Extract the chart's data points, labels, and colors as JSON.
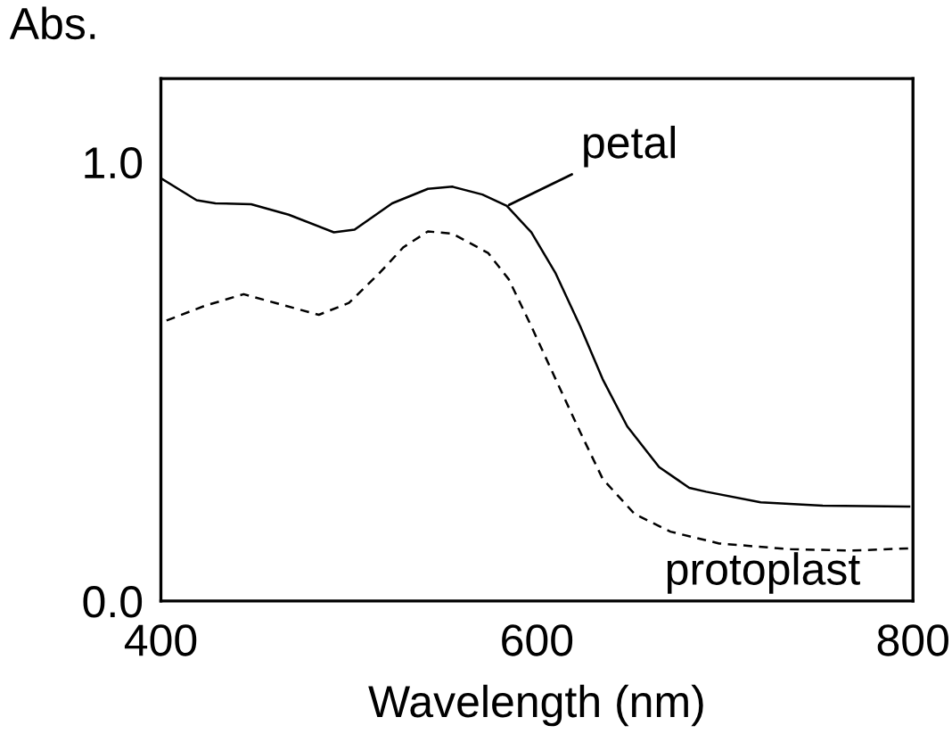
{
  "chart_data": {
    "type": "line",
    "xlabel": "Wavelength (nm)",
    "ylabel": "Abs.",
    "xlim": [
      400,
      800
    ],
    "ylim": [
      0,
      1.19
    ],
    "xticks": [
      400,
      600,
      800
    ],
    "yticks": [
      {
        "value": 0,
        "label": "0.0"
      },
      {
        "value": 1,
        "label": "1.0"
      }
    ],
    "grid": false,
    "legend": false,
    "series": [
      {
        "name": "petal",
        "color": "#000000",
        "line_style": "solid",
        "x": [
          400,
          419,
          429,
          448,
          468,
          492,
          503,
          523,
          542,
          555,
          571,
          584,
          597,
          610,
          623,
          635,
          648,
          665,
          681,
          690,
          719,
          752,
          798
        ],
        "values": [
          0.963,
          0.913,
          0.906,
          0.904,
          0.88,
          0.84,
          0.846,
          0.906,
          0.939,
          0.944,
          0.926,
          0.9,
          0.84,
          0.746,
          0.626,
          0.505,
          0.398,
          0.305,
          0.258,
          0.249,
          0.225,
          0.217,
          0.215
        ]
      },
      {
        "name": "protoplast",
        "color": "#000000",
        "line_style": "dashed",
        "x": [
          403,
          423,
          444,
          461,
          484,
          500,
          516,
          529,
          542,
          555,
          574,
          585,
          597,
          610,
          623,
          635,
          652,
          671,
          697,
          735,
          768,
          798
        ],
        "values": [
          0.639,
          0.672,
          0.699,
          0.679,
          0.652,
          0.679,
          0.746,
          0.806,
          0.842,
          0.837,
          0.793,
          0.733,
          0.626,
          0.505,
          0.385,
          0.278,
          0.198,
          0.158,
          0.131,
          0.118,
          0.115,
          0.12
        ]
      }
    ]
  }
}
